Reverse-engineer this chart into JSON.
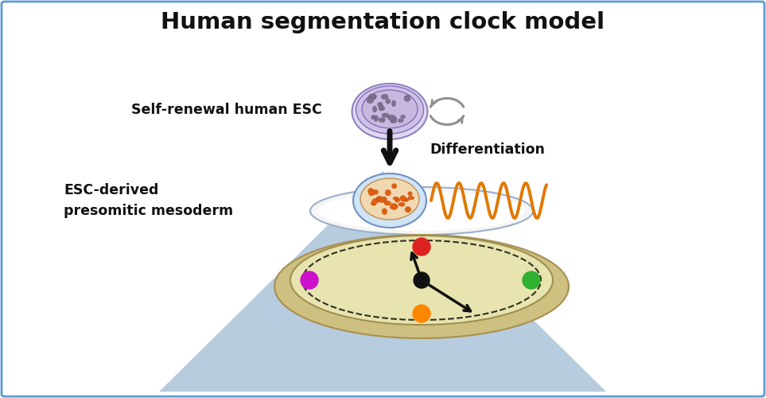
{
  "title": "Human segmentation clock model",
  "title_fontsize": 21,
  "title_fontweight": "bold",
  "bg_color": "#ffffff",
  "border_color": "#5b9bd5",
  "label_esc": "Self-renewal human ESC",
  "label_psm": "ESC-derived\npresomitic mesoderm",
  "label_diff": "Differentiation",
  "wave_color": "#e07800",
  "dot_red": "#dd2020",
  "dot_green": "#30b030",
  "dot_magenta": "#cc10cc",
  "dot_orange": "#ff8800",
  "blue_tri_color": "#b8ccdf",
  "clock_face": "#e8e4b0",
  "clock_rim": "#cec080",
  "clock_dark": "#303020",
  "gray_arrow": "#888888",
  "esc_outer": "#d0c8e8",
  "esc_mid": "#c0b0e0",
  "esc_inner_fill": "#b8a8d8",
  "esc_cell": "#706090",
  "psm_outer": "#c8ddf0",
  "psm_inner_fill": "#f0d0a0",
  "psm_cell": "#e05010"
}
